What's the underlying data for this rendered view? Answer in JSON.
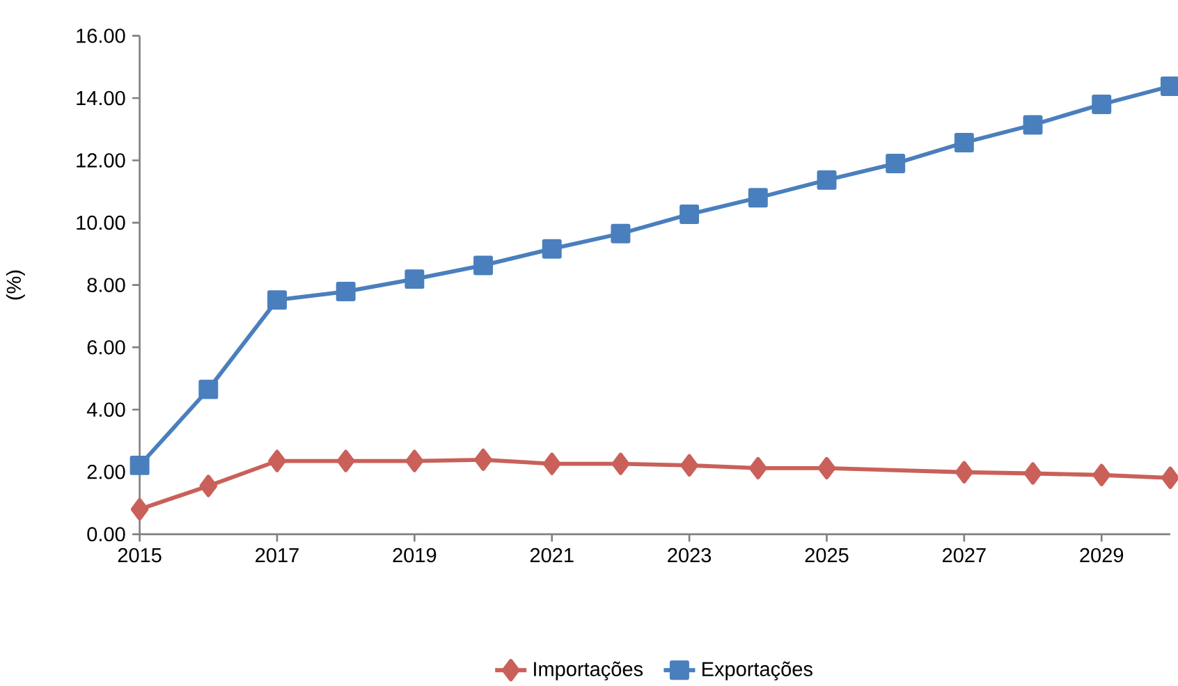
{
  "chart_data": {
    "type": "line",
    "ylabel": "(%)",
    "xlim": [
      2015,
      2030
    ],
    "xticks": [
      2015,
      2017,
      2019,
      2021,
      2023,
      2025,
      2027,
      2029
    ],
    "ylim": [
      0,
      16
    ],
    "yticks": [
      {
        "value": 0,
        "label": "0.00"
      },
      {
        "value": 2,
        "label": "2.00"
      },
      {
        "value": 4,
        "label": "4.00"
      },
      {
        "value": 6,
        "label": "6.00"
      },
      {
        "value": 8,
        "label": "8.00"
      },
      {
        "value": 10,
        "label": "10.00"
      },
      {
        "value": 12,
        "label": "12.00"
      },
      {
        "value": 14,
        "label": "14.00"
      },
      {
        "value": 16,
        "label": "16.00"
      }
    ],
    "grid": false,
    "legend": "bottom",
    "line_style": "solid",
    "series": [
      {
        "name": "Importações",
        "color": "#c9605a",
        "marker": "diamond",
        "x": [
          2015,
          2016,
          2017,
          2018,
          2019,
          2020,
          2021,
          2022,
          2023,
          2024,
          2025,
          2027,
          2028,
          2029,
          2030
        ],
        "values": [
          0.8,
          1.55,
          2.35,
          2.35,
          2.35,
          2.39,
          2.26,
          2.26,
          2.21,
          2.12,
          2.12,
          1.99,
          1.95,
          1.9,
          1.81
        ]
      },
      {
        "name": "Exportações",
        "color": "#4a7fbd",
        "marker": "square",
        "x": [
          2015,
          2016,
          2017,
          2018,
          2019,
          2020,
          2021,
          2022,
          2023,
          2024,
          2025,
          2026,
          2027,
          2028,
          2029,
          2030
        ],
        "values": [
          2.21,
          4.65,
          7.52,
          7.79,
          8.19,
          8.63,
          9.16,
          9.65,
          10.27,
          10.8,
          11.37,
          11.9,
          12.57,
          13.14,
          13.8,
          14.38
        ]
      }
    ]
  }
}
